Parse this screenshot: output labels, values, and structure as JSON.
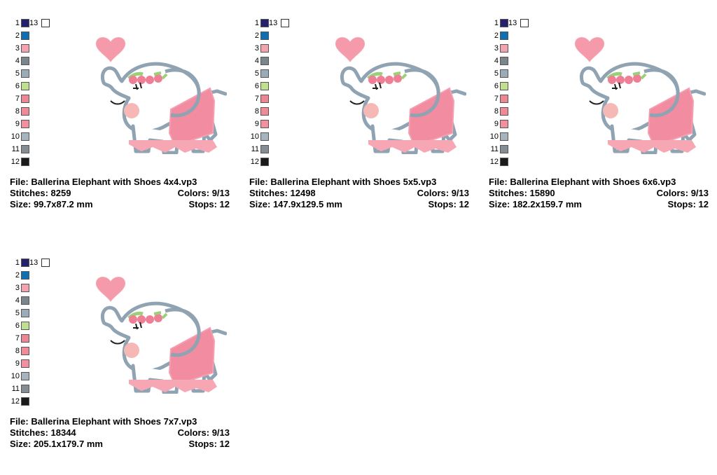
{
  "swatches": [
    {
      "num": "1",
      "color": "#25206b"
    },
    {
      "num": "2",
      "color": "#0f6fb5"
    },
    {
      "num": "3",
      "color": "#f2a3ad"
    },
    {
      "num": "4",
      "color": "#7b858c"
    },
    {
      "num": "5",
      "color": "#9aacb8"
    },
    {
      "num": "6",
      "color": "#bfe08f"
    },
    {
      "num": "7",
      "color": "#ee8593"
    },
    {
      "num": "8",
      "color": "#f08a97"
    },
    {
      "num": "9",
      "color": "#f48fa0"
    },
    {
      "num": "10",
      "color": "#a6b4bf"
    },
    {
      "num": "11",
      "color": "#838d93"
    },
    {
      "num": "12",
      "color": "#1a1a1a"
    }
  ],
  "swatch13": {
    "num": "13",
    "color": "#ffffff"
  },
  "designs": [
    {
      "file": "File: Ballerina Elephant with Shoes 4x4.vp3",
      "stitches": "Stitches: 8259",
      "colors": "Colors: 9/13",
      "size": "Size: 99.7x87.2 mm",
      "stops": "Stops: 12"
    },
    {
      "file": "File: Ballerina Elephant with Shoes 5x5.vp3",
      "stitches": "Stitches: 12498",
      "colors": "Colors: 9/13",
      "size": "Size: 147.9x129.5 mm",
      "stops": "Stops: 12"
    },
    {
      "file": "File: Ballerina Elephant with Shoes 6x6.vp3",
      "stitches": "Stitches: 15890",
      "colors": "Colors: 9/13",
      "size": "Size: 182.2x159.7 mm",
      "stops": "Stops: 12"
    },
    {
      "file": "File: Ballerina Elephant with Shoes 7x7.vp3",
      "stitches": "Stitches: 18344",
      "colors": "Colors: 9/13",
      "size": "Size: 205.1x179.7 mm",
      "stops": "Stops: 12"
    }
  ],
  "art_colors": {
    "outline": "#8fa3b3",
    "tutu": "#f28ca0",
    "heart": "#f59aaa",
    "cheek": "#f6b8b5",
    "leaf": "#9ccf7a",
    "rose": "#ee7f95",
    "eye": "#222222"
  }
}
